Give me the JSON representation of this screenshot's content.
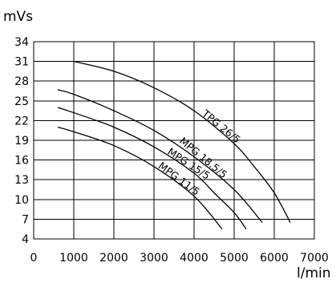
{
  "chart_data": {
    "type": "line",
    "title": "",
    "ylabel": "mVs",
    "xlabel": "l/min",
    "xlim": [
      0,
      7000
    ],
    "ylim": [
      4,
      34
    ],
    "x_ticks": [
      0,
      1000,
      2000,
      3000,
      4000,
      5000,
      6000,
      7000
    ],
    "y_ticks": [
      4,
      7,
      10,
      13,
      16,
      19,
      22,
      25,
      28,
      31,
      34
    ],
    "grid": true,
    "series": [
      {
        "name": "TPG 26/5",
        "points": [
          [
            1000,
            31
          ],
          [
            2000,
            29.5
          ],
          [
            3000,
            27
          ],
          [
            4000,
            23.5
          ],
          [
            5000,
            18.5
          ],
          [
            5500,
            15
          ],
          [
            6000,
            11
          ],
          [
            6400,
            6.5
          ]
        ]
      },
      {
        "name": "MPG 18.5/5",
        "points": [
          [
            600,
            26.7
          ],
          [
            1000,
            26
          ],
          [
            2000,
            23.5
          ],
          [
            3000,
            20.5
          ],
          [
            4000,
            16.5
          ],
          [
            5000,
            11.5
          ],
          [
            5700,
            6.5
          ]
        ]
      },
      {
        "name": "MPG 15/5",
        "points": [
          [
            600,
            24
          ],
          [
            1000,
            23.2
          ],
          [
            2000,
            21
          ],
          [
            3000,
            18
          ],
          [
            4000,
            14
          ],
          [
            4500,
            11
          ],
          [
            5000,
            8
          ],
          [
            5300,
            5.5
          ]
        ]
      },
      {
        "name": "MPG 11/5",
        "points": [
          [
            600,
            21
          ],
          [
            1000,
            20.3
          ],
          [
            2000,
            18.2
          ],
          [
            3000,
            15
          ],
          [
            4000,
            10.5
          ],
          [
            4700,
            5.5
          ]
        ]
      }
    ]
  }
}
